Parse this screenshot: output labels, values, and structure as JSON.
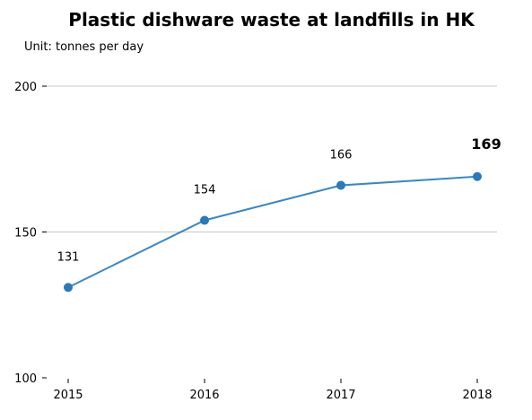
{
  "chart_data": {
    "type": "line",
    "title": "Plastic dishware waste at landfills in HK",
    "subtitle": "Unit: tonnes per day",
    "categories": [
      "2015",
      "2016",
      "2017",
      "2018"
    ],
    "series": [
      {
        "values": [
          131,
          154,
          166,
          169
        ],
        "color": "#3b87c2"
      }
    ],
    "data_labels": [
      "131",
      "154",
      "166",
      "169"
    ],
    "highlighted_label_index": 3,
    "yticks": [
      100,
      150,
      200
    ],
    "ylim": [
      100,
      200
    ],
    "grid": {
      "horizontal": true,
      "values": [
        150,
        200
      ]
    },
    "legend": "none"
  }
}
